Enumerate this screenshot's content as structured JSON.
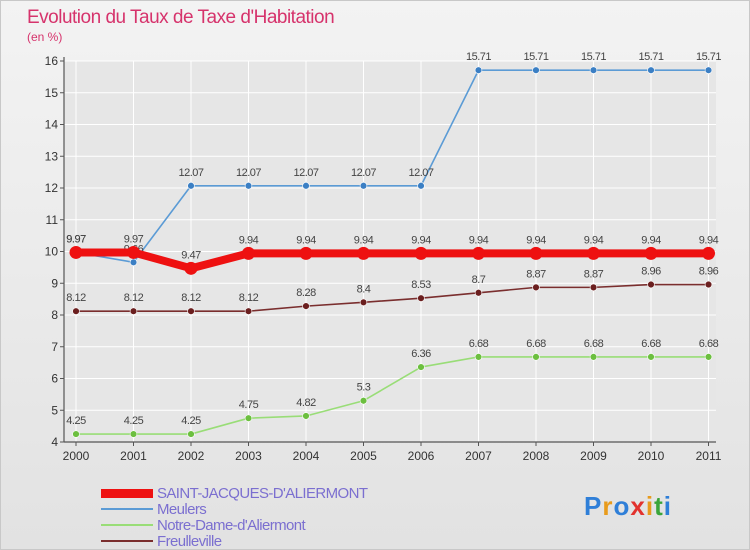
{
  "title": "Evolution du Taux de Taxe d'Habitation",
  "subtitle": "(en %)",
  "logo": {
    "text": "Proxiti",
    "colors": [
      "#2f7fd8",
      "#e89b1c",
      "#2f7fd8",
      "#e2322e",
      "#e89b1c",
      "#3aa53a",
      "#2f7fd8"
    ]
  },
  "colors": {
    "title": "#d6336c",
    "axis": "#555555",
    "grid": "#ffffff",
    "legend_text": "#7b6fd0"
  },
  "chart_data": {
    "type": "line",
    "x": [
      "2000",
      "2001",
      "2002",
      "2003",
      "2004",
      "2005",
      "2006",
      "2007",
      "2008",
      "2009",
      "2010",
      "2011"
    ],
    "ylim": [
      4,
      16
    ],
    "yticks": [
      4,
      5,
      6,
      7,
      8,
      9,
      10,
      11,
      12,
      13,
      14,
      15,
      16
    ],
    "grid": true,
    "legend_position": "bottom-left",
    "series": [
      {
        "name": "Meulers",
        "color": "#5b9bd5",
        "marker": "#3b7fc4",
        "values": [
          9.97,
          9.66,
          12.07,
          12.07,
          12.07,
          12.07,
          12.07,
          15.71,
          15.71,
          15.71,
          15.71,
          15.71
        ],
        "labels": [
          "9.97",
          "9.66",
          "12.07",
          "12.07",
          "12.07",
          "12.07",
          "12.07",
          "15.71",
          "15.71",
          "15.71",
          "15.71",
          "15.71"
        ]
      },
      {
        "name": "Freulleville",
        "color": "#7a2e2e",
        "marker": "#6b1f1f",
        "values": [
          8.12,
          8.12,
          8.12,
          8.12,
          8.28,
          8.4,
          8.53,
          8.7,
          8.87,
          8.87,
          8.96,
          8.96
        ],
        "labels": [
          "8.12",
          "8.12",
          "8.12",
          "8.12",
          "8.28",
          "8.4",
          "8.53",
          "8.7",
          "8.87",
          "8.87",
          "8.96",
          "8.96"
        ]
      },
      {
        "name": "Notre-Dame-d'Aliermont",
        "color": "#99dd77",
        "marker": "#6cbf3f",
        "values": [
          4.25,
          4.25,
          4.25,
          4.75,
          4.82,
          5.3,
          6.36,
          6.68,
          6.68,
          6.68,
          6.68,
          6.68
        ],
        "labels": [
          "4.25",
          "4.25",
          "4.25",
          "4.75",
          "4.82",
          "5.3",
          "6.36",
          "6.68",
          "6.68",
          "6.68",
          "6.68",
          "6.68"
        ]
      },
      {
        "name": "SAINT-JACQUES-D'ALIERMONT",
        "color": "#ee1111",
        "marker": "#ee1111",
        "thick": true,
        "values": [
          9.97,
          9.97,
          9.47,
          9.94,
          9.94,
          9.94,
          9.94,
          9.94,
          9.94,
          9.94,
          9.94,
          9.94
        ],
        "labels": [
          "9.97",
          "9.97",
          "9.47",
          "9.94",
          "9.94",
          "9.94",
          "9.94",
          "9.94",
          "9.94",
          "9.94",
          "9.94",
          "9.94"
        ]
      }
    ]
  },
  "legend": [
    {
      "label": "SAINT-JACQUES-D'ALIERMONT",
      "color": "#ee1111",
      "thick": true
    },
    {
      "label": "Meulers",
      "color": "#5b9bd5"
    },
    {
      "label": "Notre-Dame-d'Aliermont",
      "color": "#99dd77"
    },
    {
      "label": "Freulleville",
      "color": "#7a2e2e"
    }
  ]
}
